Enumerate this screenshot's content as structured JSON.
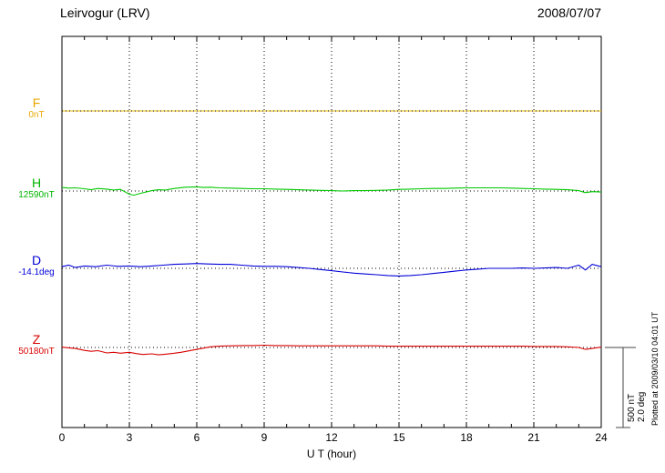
{
  "header": {
    "title": "Leirvogur (LRV)",
    "date": "2008/07/07"
  },
  "chart_data": {
    "type": "line",
    "title": "Leirvogur (LRV)",
    "date": "2008/07/07",
    "xlabel": "U T (hour)",
    "x_range": [
      0,
      24
    ],
    "xticks": [
      0,
      3,
      6,
      9,
      12,
      15,
      18,
      21,
      24
    ],
    "grid": "dotted vertical gridlines every 3 hours; dotted horizontal baseline per trace",
    "legend_position": "left margin, one colored letter + baseline value per trace",
    "scale_bar": {
      "label_nt": "500 nT",
      "label_deg": "2.0 deg",
      "span_nT": 500,
      "span_deg": 2.0
    },
    "annotation": "Plotted at 2009/03/10 04:01 UT",
    "series": [
      {
        "name": "F",
        "color": "#f0c000",
        "unit": "nT",
        "baseline_label": "0nT",
        "baseline_value": 0,
        "points": [
          [
            0,
            0
          ],
          [
            24,
            0
          ]
        ]
      },
      {
        "name": "H",
        "color": "#00c800",
        "unit": "nT",
        "baseline_label": "12590nT",
        "baseline_value": 12590,
        "points": [
          [
            0,
            22
          ],
          [
            0.3,
            18
          ],
          [
            0.6,
            20
          ],
          [
            1,
            14
          ],
          [
            1.3,
            8
          ],
          [
            1.6,
            16
          ],
          [
            2,
            12
          ],
          [
            2.3,
            6
          ],
          [
            2.6,
            10
          ],
          [
            3,
            -20
          ],
          [
            3.2,
            -26
          ],
          [
            3.5,
            -14
          ],
          [
            4,
            2
          ],
          [
            4.3,
            8
          ],
          [
            4.6,
            6
          ],
          [
            5,
            16
          ],
          [
            5.5,
            24
          ],
          [
            6,
            26
          ],
          [
            6.3,
            22
          ],
          [
            6.6,
            24
          ],
          [
            7,
            20
          ],
          [
            7.5,
            18
          ],
          [
            8,
            16
          ],
          [
            8.5,
            14
          ],
          [
            9,
            14
          ],
          [
            9.5,
            12
          ],
          [
            10,
            10
          ],
          [
            10.5,
            8
          ],
          [
            11,
            6
          ],
          [
            11.5,
            4
          ],
          [
            12,
            2
          ],
          [
            12.5,
            0
          ],
          [
            13,
            2
          ],
          [
            13.5,
            2
          ],
          [
            14,
            4
          ],
          [
            14.5,
            6
          ],
          [
            15,
            10
          ],
          [
            15.5,
            12
          ],
          [
            16,
            14
          ],
          [
            16.5,
            16
          ],
          [
            17,
            16
          ],
          [
            17.5,
            18
          ],
          [
            18,
            20
          ],
          [
            18.5,
            20
          ],
          [
            19,
            20
          ],
          [
            19.5,
            20
          ],
          [
            20,
            18
          ],
          [
            20.5,
            16
          ],
          [
            21,
            14
          ],
          [
            21.5,
            12
          ],
          [
            22,
            10
          ],
          [
            22.5,
            8
          ],
          [
            23,
            2
          ],
          [
            23.3,
            -10
          ],
          [
            23.6,
            -4
          ],
          [
            24,
            -6
          ]
        ]
      },
      {
        "name": "D",
        "color": "#0000d8",
        "unit": "deg",
        "baseline_label": "-14.1deg",
        "baseline_value": -14.1,
        "points": [
          [
            0,
            0.04
          ],
          [
            0.3,
            0.08
          ],
          [
            0.6,
            0.02
          ],
          [
            1,
            0.06
          ],
          [
            1.5,
            0.04
          ],
          [
            2,
            0.08
          ],
          [
            2.5,
            0.05
          ],
          [
            3,
            0.06
          ],
          [
            3.5,
            0.04
          ],
          [
            4,
            0.06
          ],
          [
            4.5,
            0.08
          ],
          [
            5,
            0.1
          ],
          [
            5.5,
            0.11
          ],
          [
            6,
            0.12
          ],
          [
            6.5,
            0.11
          ],
          [
            7,
            0.1
          ],
          [
            7.5,
            0.1
          ],
          [
            8,
            0.08
          ],
          [
            8.5,
            0.06
          ],
          [
            9,
            0.05
          ],
          [
            9.5,
            0.05
          ],
          [
            10,
            0.04
          ],
          [
            10.5,
            0.02
          ],
          [
            11,
            0.0
          ],
          [
            11.5,
            -0.03
          ],
          [
            12,
            -0.06
          ],
          [
            12.5,
            -0.09
          ],
          [
            13,
            -0.12
          ],
          [
            13.5,
            -0.14
          ],
          [
            14,
            -0.16
          ],
          [
            14.5,
            -0.18
          ],
          [
            15,
            -0.19
          ],
          [
            15.5,
            -0.18
          ],
          [
            16,
            -0.16
          ],
          [
            16.5,
            -0.13
          ],
          [
            17,
            -0.1
          ],
          [
            17.5,
            -0.07
          ],
          [
            18,
            -0.04
          ],
          [
            18.5,
            -0.02
          ],
          [
            19,
            0.0
          ],
          [
            19.5,
            0.0
          ],
          [
            20,
            0.0
          ],
          [
            20.5,
            0.01
          ],
          [
            21,
            0.0
          ],
          [
            21.5,
            0.01
          ],
          [
            22,
            0.02
          ],
          [
            22.5,
            0.0
          ],
          [
            23,
            0.08
          ],
          [
            23.3,
            -0.04
          ],
          [
            23.6,
            0.1
          ],
          [
            24,
            0.04
          ]
        ]
      },
      {
        "name": "Z",
        "color": "#d80000",
        "unit": "nT",
        "baseline_label": "50180nT",
        "baseline_value": 50180,
        "points": [
          [
            0,
            2
          ],
          [
            0.3,
            -2
          ],
          [
            0.6,
            -6
          ],
          [
            1,
            -18
          ],
          [
            1.3,
            -24
          ],
          [
            1.6,
            -20
          ],
          [
            2,
            -34
          ],
          [
            2.3,
            -30
          ],
          [
            2.6,
            -36
          ],
          [
            3,
            -30
          ],
          [
            3.3,
            -38
          ],
          [
            3.6,
            -44
          ],
          [
            4,
            -40
          ],
          [
            4.3,
            -46
          ],
          [
            4.6,
            -42
          ],
          [
            5,
            -36
          ],
          [
            5.3,
            -30
          ],
          [
            5.6,
            -22
          ],
          [
            6,
            -12
          ],
          [
            6.3,
            -4
          ],
          [
            6.6,
            4
          ],
          [
            7,
            8
          ],
          [
            7.5,
            10
          ],
          [
            8,
            12
          ],
          [
            8.5,
            12
          ],
          [
            9,
            14
          ],
          [
            9.5,
            12
          ],
          [
            10,
            12
          ],
          [
            10.5,
            10
          ],
          [
            11,
            10
          ],
          [
            11.5,
            10
          ],
          [
            12,
            10
          ],
          [
            12.5,
            10
          ],
          [
            13,
            10
          ],
          [
            13.5,
            10
          ],
          [
            14,
            10
          ],
          [
            14.5,
            8
          ],
          [
            15,
            8
          ],
          [
            15.5,
            8
          ],
          [
            16,
            8
          ],
          [
            16.5,
            8
          ],
          [
            17,
            8
          ],
          [
            17.5,
            8
          ],
          [
            18,
            8
          ],
          [
            18.5,
            8
          ],
          [
            19,
            8
          ],
          [
            19.5,
            8
          ],
          [
            20,
            8
          ],
          [
            20.5,
            8
          ],
          [
            21,
            6
          ],
          [
            21.5,
            6
          ],
          [
            22,
            6
          ],
          [
            22.5,
            4
          ],
          [
            23,
            0
          ],
          [
            23.3,
            -12
          ],
          [
            23.6,
            -6
          ],
          [
            24,
            2
          ]
        ]
      }
    ]
  }
}
